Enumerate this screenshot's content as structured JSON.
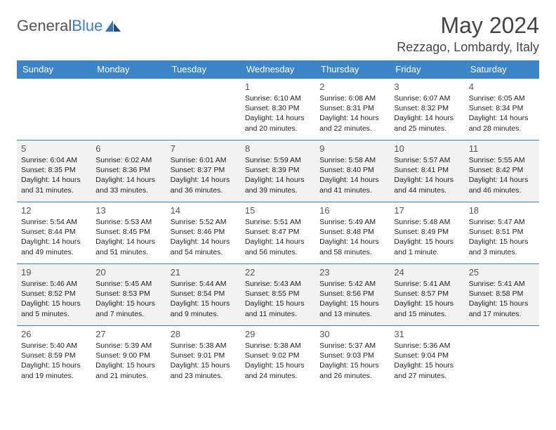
{
  "logo": {
    "word1": "General",
    "word2": "Blue"
  },
  "title": "May 2024",
  "location": "Rezzago, Lombardy, Italy",
  "colors": {
    "header_bg": "#3c86c7",
    "header_text": "#ffffff",
    "divider": "#3c7fbf",
    "alt_row_bg": "#f2f2f2",
    "text": "#222222",
    "muted": "#555555"
  },
  "day_names": [
    "Sunday",
    "Monday",
    "Tuesday",
    "Wednesday",
    "Thursday",
    "Friday",
    "Saturday"
  ],
  "weeks": [
    [
      {
        "n": "",
        "lines": []
      },
      {
        "n": "",
        "lines": []
      },
      {
        "n": "",
        "lines": []
      },
      {
        "n": "1",
        "lines": [
          "Sunrise: 6:10 AM",
          "Sunset: 8:30 PM",
          "Daylight: 14 hours",
          "and 20 minutes."
        ]
      },
      {
        "n": "2",
        "lines": [
          "Sunrise: 6:08 AM",
          "Sunset: 8:31 PM",
          "Daylight: 14 hours",
          "and 22 minutes."
        ]
      },
      {
        "n": "3",
        "lines": [
          "Sunrise: 6:07 AM",
          "Sunset: 8:32 PM",
          "Daylight: 14 hours",
          "and 25 minutes."
        ]
      },
      {
        "n": "4",
        "lines": [
          "Sunrise: 6:05 AM",
          "Sunset: 8:34 PM",
          "Daylight: 14 hours",
          "and 28 minutes."
        ]
      }
    ],
    [
      {
        "n": "5",
        "lines": [
          "Sunrise: 6:04 AM",
          "Sunset: 8:35 PM",
          "Daylight: 14 hours",
          "and 31 minutes."
        ]
      },
      {
        "n": "6",
        "lines": [
          "Sunrise: 6:02 AM",
          "Sunset: 8:36 PM",
          "Daylight: 14 hours",
          "and 33 minutes."
        ]
      },
      {
        "n": "7",
        "lines": [
          "Sunrise: 6:01 AM",
          "Sunset: 8:37 PM",
          "Daylight: 14 hours",
          "and 36 minutes."
        ]
      },
      {
        "n": "8",
        "lines": [
          "Sunrise: 5:59 AM",
          "Sunset: 8:39 PM",
          "Daylight: 14 hours",
          "and 39 minutes."
        ]
      },
      {
        "n": "9",
        "lines": [
          "Sunrise: 5:58 AM",
          "Sunset: 8:40 PM",
          "Daylight: 14 hours",
          "and 41 minutes."
        ]
      },
      {
        "n": "10",
        "lines": [
          "Sunrise: 5:57 AM",
          "Sunset: 8:41 PM",
          "Daylight: 14 hours",
          "and 44 minutes."
        ]
      },
      {
        "n": "11",
        "lines": [
          "Sunrise: 5:55 AM",
          "Sunset: 8:42 PM",
          "Daylight: 14 hours",
          "and 46 minutes."
        ]
      }
    ],
    [
      {
        "n": "12",
        "lines": [
          "Sunrise: 5:54 AM",
          "Sunset: 8:44 PM",
          "Daylight: 14 hours",
          "and 49 minutes."
        ]
      },
      {
        "n": "13",
        "lines": [
          "Sunrise: 5:53 AM",
          "Sunset: 8:45 PM",
          "Daylight: 14 hours",
          "and 51 minutes."
        ]
      },
      {
        "n": "14",
        "lines": [
          "Sunrise: 5:52 AM",
          "Sunset: 8:46 PM",
          "Daylight: 14 hours",
          "and 54 minutes."
        ]
      },
      {
        "n": "15",
        "lines": [
          "Sunrise: 5:51 AM",
          "Sunset: 8:47 PM",
          "Daylight: 14 hours",
          "and 56 minutes."
        ]
      },
      {
        "n": "16",
        "lines": [
          "Sunrise: 5:49 AM",
          "Sunset: 8:48 PM",
          "Daylight: 14 hours",
          "and 58 minutes."
        ]
      },
      {
        "n": "17",
        "lines": [
          "Sunrise: 5:48 AM",
          "Sunset: 8:49 PM",
          "Daylight: 15 hours",
          "and 1 minute."
        ]
      },
      {
        "n": "18",
        "lines": [
          "Sunrise: 5:47 AM",
          "Sunset: 8:51 PM",
          "Daylight: 15 hours",
          "and 3 minutes."
        ]
      }
    ],
    [
      {
        "n": "19",
        "lines": [
          "Sunrise: 5:46 AM",
          "Sunset: 8:52 PM",
          "Daylight: 15 hours",
          "and 5 minutes."
        ]
      },
      {
        "n": "20",
        "lines": [
          "Sunrise: 5:45 AM",
          "Sunset: 8:53 PM",
          "Daylight: 15 hours",
          "and 7 minutes."
        ]
      },
      {
        "n": "21",
        "lines": [
          "Sunrise: 5:44 AM",
          "Sunset: 8:54 PM",
          "Daylight: 15 hours",
          "and 9 minutes."
        ]
      },
      {
        "n": "22",
        "lines": [
          "Sunrise: 5:43 AM",
          "Sunset: 8:55 PM",
          "Daylight: 15 hours",
          "and 11 minutes."
        ]
      },
      {
        "n": "23",
        "lines": [
          "Sunrise: 5:42 AM",
          "Sunset: 8:56 PM",
          "Daylight: 15 hours",
          "and 13 minutes."
        ]
      },
      {
        "n": "24",
        "lines": [
          "Sunrise: 5:41 AM",
          "Sunset: 8:57 PM",
          "Daylight: 15 hours",
          "and 15 minutes."
        ]
      },
      {
        "n": "25",
        "lines": [
          "Sunrise: 5:41 AM",
          "Sunset: 8:58 PM",
          "Daylight: 15 hours",
          "and 17 minutes."
        ]
      }
    ],
    [
      {
        "n": "26",
        "lines": [
          "Sunrise: 5:40 AM",
          "Sunset: 8:59 PM",
          "Daylight: 15 hours",
          "and 19 minutes."
        ]
      },
      {
        "n": "27",
        "lines": [
          "Sunrise: 5:39 AM",
          "Sunset: 9:00 PM",
          "Daylight: 15 hours",
          "and 21 minutes."
        ]
      },
      {
        "n": "28",
        "lines": [
          "Sunrise: 5:38 AM",
          "Sunset: 9:01 PM",
          "Daylight: 15 hours",
          "and 23 minutes."
        ]
      },
      {
        "n": "29",
        "lines": [
          "Sunrise: 5:38 AM",
          "Sunset: 9:02 PM",
          "Daylight: 15 hours",
          "and 24 minutes."
        ]
      },
      {
        "n": "30",
        "lines": [
          "Sunrise: 5:37 AM",
          "Sunset: 9:03 PM",
          "Daylight: 15 hours",
          "and 26 minutes."
        ]
      },
      {
        "n": "31",
        "lines": [
          "Sunrise: 5:36 AM",
          "Sunset: 9:04 PM",
          "Daylight: 15 hours",
          "and 27 minutes."
        ]
      },
      {
        "n": "",
        "lines": []
      }
    ]
  ]
}
